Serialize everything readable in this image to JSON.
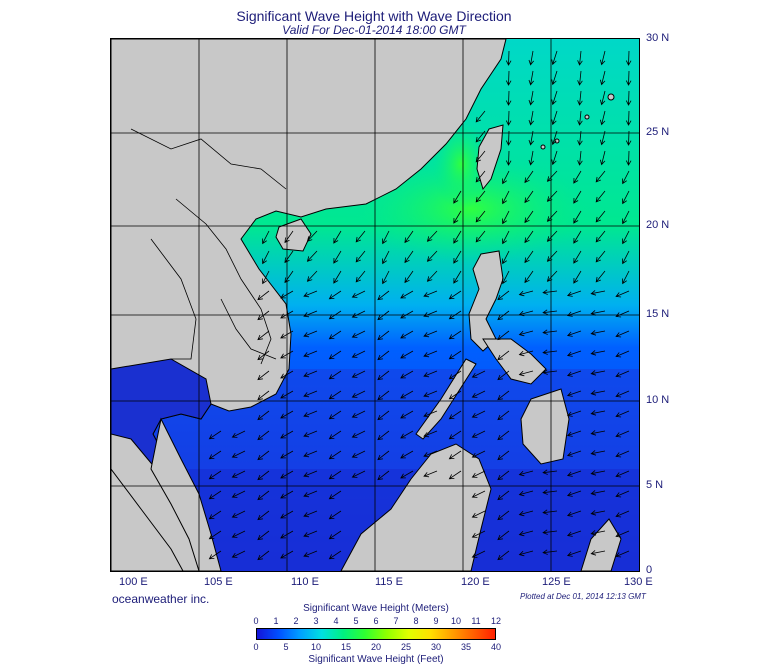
{
  "title": "Significant Wave Height with Wave Direction",
  "subtitle": "Valid For Dec-01-2014 18:00 GMT",
  "credit": "oceanweather inc.",
  "plotted": "Plotted at Dec 01, 2014 12:13 GMT",
  "lat_labels": [
    "30 N",
    "25 N",
    "20 N",
    "15 N",
    "10 N",
    "5 N",
    "0"
  ],
  "lon_labels": [
    "100 E",
    "105 E",
    "110 E",
    "115 E",
    "120 E",
    "125 E",
    "130 E"
  ],
  "colorbar": {
    "meters_title": "Significant Wave Height (Meters)",
    "feet_title": "Significant Wave Height (Feet)",
    "meters_ticks": [
      "0",
      "1",
      "2",
      "3",
      "4",
      "5",
      "6",
      "7",
      "8",
      "9",
      "10",
      "11",
      "12"
    ],
    "feet_ticks": [
      "0",
      "5",
      "10",
      "15",
      "20",
      "25",
      "30",
      "35",
      "40"
    ],
    "colors": [
      "#1414d8",
      "#0050ff",
      "#00a0ff",
      "#00e0e0",
      "#00f080",
      "#30ff30",
      "#90ff00",
      "#e0ff00",
      "#ffe000",
      "#ffa000",
      "#ff6000",
      "#ff2000"
    ]
  },
  "colors": {
    "land": "#c8c8c8",
    "grid": "#000000",
    "text": "#1c1c78"
  }
}
